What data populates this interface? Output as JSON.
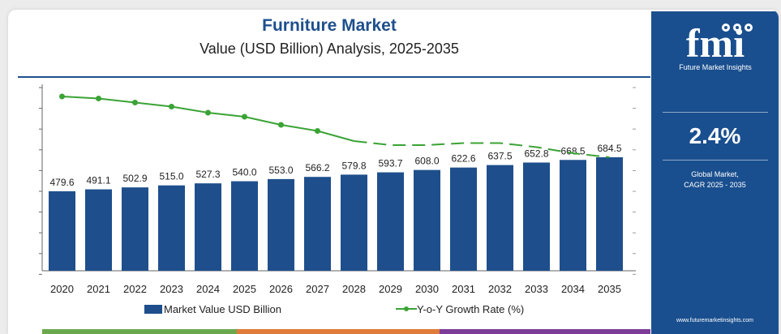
{
  "header": {
    "title": "Furniture Market",
    "subtitle": "Value (USD Billion) Analysis, 2025-2035"
  },
  "sidebar": {
    "logo_letters": "fmi",
    "logo_caption": "Future Market Insights",
    "cagr_value": "2.4%",
    "cagr_label_line1": "Global Market,",
    "cagr_label_line2": "CAGR 2025 - 2035",
    "website": "www.futuremarketinsights.com"
  },
  "legend": {
    "bar_label": "Market Value USD Billion",
    "line_label": "Y-o-Y Growth Rate (%)"
  },
  "colors": {
    "bar": "#1e4f8c",
    "line": "#3aa335",
    "sidebar": "#1a4f8f",
    "strip": [
      "#6aa84f",
      "#e07b39",
      "#7d3c98"
    ]
  },
  "chart_data": {
    "type": "bar",
    "categories": [
      "2020",
      "2021",
      "2022",
      "2023",
      "2024",
      "2025",
      "2026",
      "2027",
      "2028",
      "2029",
      "2030",
      "2031",
      "2032",
      "2033",
      "2034",
      "2035"
    ],
    "series": [
      {
        "name": "Market Value USD Billion",
        "type": "bar",
        "values": [
          479.6,
          491.1,
          502.9,
          515.0,
          527.3,
          540.0,
          553.0,
          566.2,
          579.8,
          593.7,
          608.0,
          622.6,
          637.5,
          652.8,
          668.5,
          684.5
        ],
        "labels": [
          "479.6",
          "491.1",
          "502.9",
          "515.0",
          "527.3",
          "540.0",
          "553.0",
          "566.2",
          "579.8",
          "593.7",
          "608.0",
          "622.6",
          "637.5",
          "652.8",
          "668.5",
          "684.5"
        ]
      },
      {
        "name": "Y-o-Y Growth Rate (%)",
        "type": "line",
        "values": [
          2.55,
          2.54,
          2.52,
          2.5,
          2.47,
          2.45,
          2.41,
          2.38,
          2.33,
          2.31,
          2.31,
          2.32,
          2.32,
          2.3,
          2.27,
          2.25
        ]
      }
    ],
    "ylim": [
      0,
      750
    ],
    "grid": false,
    "legend_position": "bottom"
  }
}
